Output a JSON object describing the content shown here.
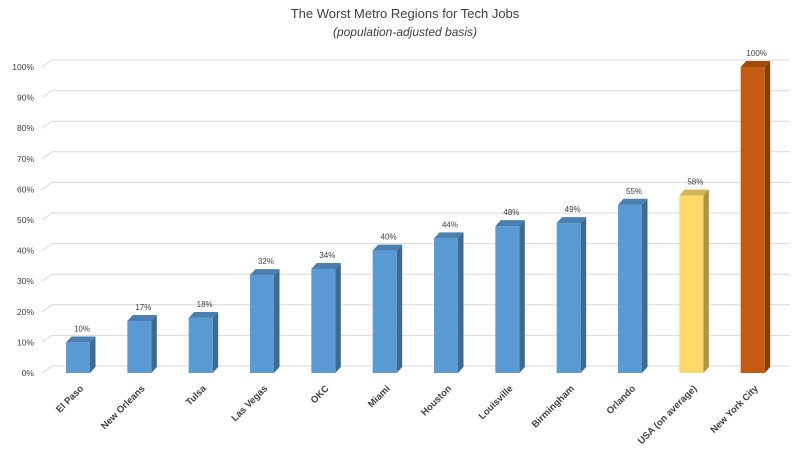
{
  "chart_data": {
    "type": "bar",
    "title": "The Worst Metro Regions for Tech Jobs",
    "subtitle": "(population-adjusted basis)",
    "xlabel": "",
    "ylabel": "",
    "ylim": [
      0,
      100
    ],
    "yticks": [
      "0%",
      "10%",
      "20%",
      "30%",
      "40%",
      "50%",
      "60%",
      "70%",
      "80%",
      "90%",
      "100%"
    ],
    "grid": true,
    "categories": [
      "El Paso",
      "New Orleans",
      "Tulsa",
      "Las Vegas",
      "OKC",
      "Miami",
      "Houston",
      "Louisville",
      "Birmingham",
      "Orlando",
      "USA (on average)",
      "New York City"
    ],
    "values": [
      10,
      17,
      18,
      32,
      34,
      40,
      44,
      48,
      49,
      55,
      58,
      100
    ],
    "data_labels": [
      "10%",
      "17%",
      "18%",
      "32%",
      "34%",
      "40%",
      "44%",
      "48%",
      "49%",
      "55%",
      "58%",
      "100%"
    ],
    "colors": {
      "default": "#5b9bd5",
      "USA (on average)": "#ffd966",
      "New York City": "#c55a11"
    }
  }
}
